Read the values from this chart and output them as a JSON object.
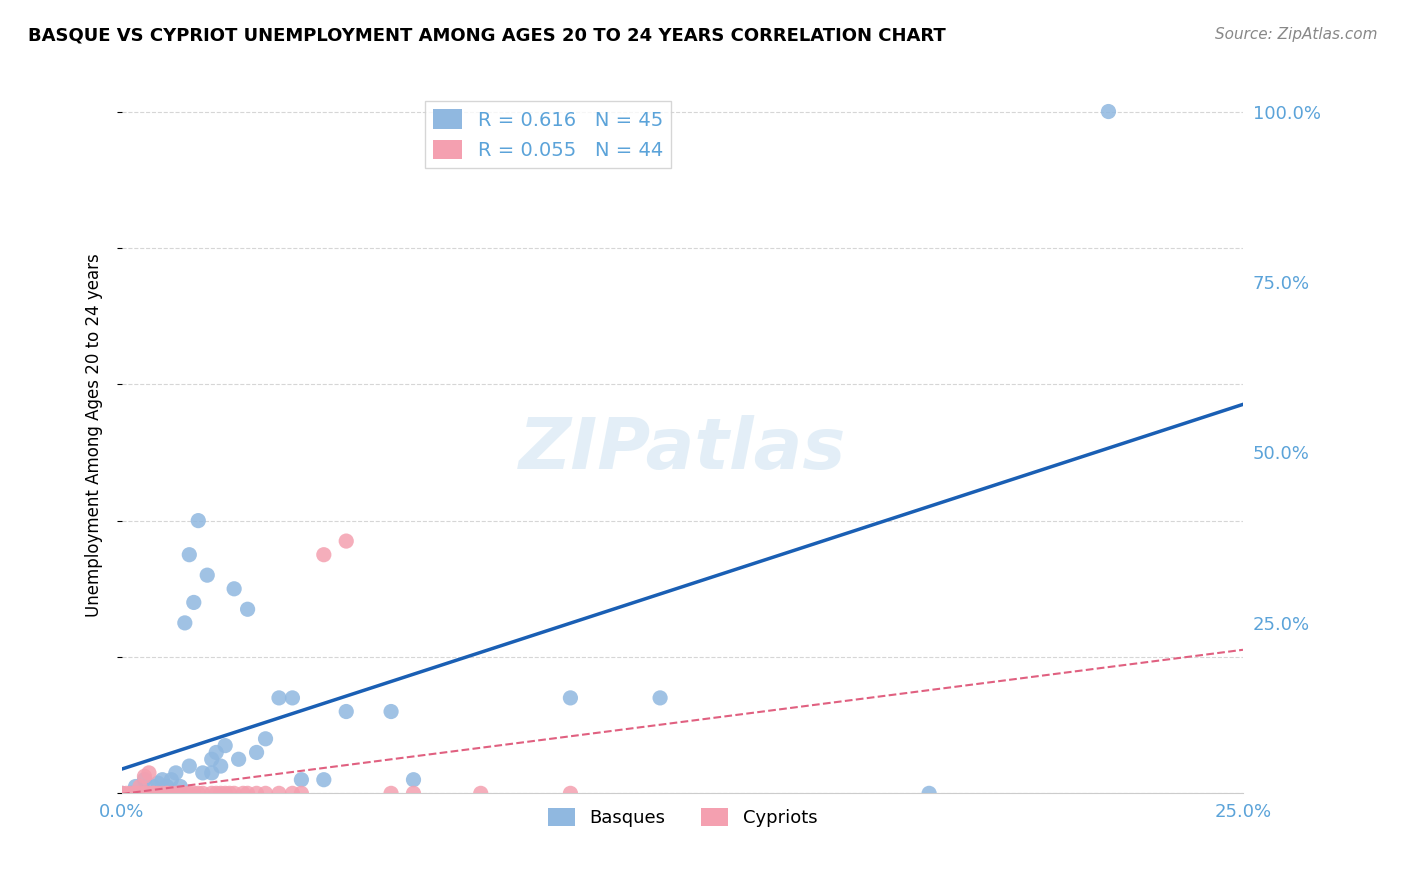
{
  "title": "BASQUE VS CYPRIOT UNEMPLOYMENT AMONG AGES 20 TO 24 YEARS CORRELATION CHART",
  "source": "Source: ZipAtlas.com",
  "xlabel": "",
  "ylabel": "Unemployment Among Ages 20 to 24 years",
  "xlim": [
    0.0,
    0.25
  ],
  "ylim": [
    0.0,
    1.05
  ],
  "xticks": [
    0.0,
    0.05,
    0.1,
    0.15,
    0.2,
    0.25
  ],
  "xticklabels": [
    "0.0%",
    "",
    "",
    "",
    "",
    "25.0%"
  ],
  "yticks": [
    0.0,
    0.25,
    0.5,
    0.75,
    1.0
  ],
  "yticklabels": [
    "",
    "25.0%",
    "50.0%",
    "75.0%",
    "100.0%"
  ],
  "basque_color": "#90b8e0",
  "cypriot_color": "#f4a0b0",
  "basque_line_color": "#1a5fb4",
  "cypriot_line_color": "#e06080",
  "grid_color": "#cccccc",
  "watermark": "ZIPatlas",
  "legend_basque_R": "0.616",
  "legend_basque_N": "45",
  "legend_cypriot_R": "0.055",
  "legend_cypriot_N": "44",
  "basque_x": [
    0.0,
    0.002,
    0.003,
    0.004,
    0.005,
    0.005,
    0.006,
    0.007,
    0.008,
    0.008,
    0.009,
    0.01,
    0.01,
    0.011,
    0.012,
    0.012,
    0.013,
    0.014,
    0.015,
    0.015,
    0.016,
    0.017,
    0.018,
    0.019,
    0.02,
    0.02,
    0.021,
    0.022,
    0.023,
    0.025,
    0.026,
    0.028,
    0.03,
    0.032,
    0.035,
    0.038,
    0.04,
    0.045,
    0.05,
    0.06,
    0.065,
    0.1,
    0.12,
    0.18,
    0.22
  ],
  "basque_y": [
    0.0,
    0.0,
    0.01,
    0.0,
    0.0,
    0.02,
    0.0,
    0.01,
    0.0,
    0.015,
    0.02,
    0.0,
    0.01,
    0.02,
    0.0,
    0.03,
    0.01,
    0.25,
    0.35,
    0.04,
    0.28,
    0.4,
    0.03,
    0.32,
    0.03,
    0.05,
    0.06,
    0.04,
    0.07,
    0.3,
    0.05,
    0.27,
    0.06,
    0.08,
    0.14,
    0.14,
    0.02,
    0.02,
    0.12,
    0.12,
    0.02,
    0.14,
    0.14,
    0.0,
    1.0
  ],
  "cypriot_x": [
    0.0,
    0.001,
    0.002,
    0.003,
    0.003,
    0.004,
    0.004,
    0.005,
    0.005,
    0.006,
    0.006,
    0.007,
    0.007,
    0.008,
    0.009,
    0.01,
    0.01,
    0.011,
    0.012,
    0.013,
    0.014,
    0.015,
    0.016,
    0.017,
    0.018,
    0.02,
    0.021,
    0.022,
    0.023,
    0.024,
    0.025,
    0.027,
    0.028,
    0.03,
    0.032,
    0.035,
    0.038,
    0.04,
    0.045,
    0.05,
    0.06,
    0.065,
    0.08,
    0.1
  ],
  "cypriot_y": [
    0.0,
    0.0,
    0.0,
    0.0,
    0.0,
    0.0,
    0.01,
    0.0,
    0.025,
    0.0,
    0.03,
    0.0,
    0.0,
    0.0,
    0.0,
    0.0,
    0.0,
    0.0,
    0.0,
    0.0,
    0.0,
    0.0,
    0.0,
    0.0,
    0.0,
    0.0,
    0.0,
    0.0,
    0.0,
    0.0,
    0.0,
    0.0,
    0.0,
    0.0,
    0.0,
    0.0,
    0.0,
    0.0,
    0.35,
    0.37,
    0.0,
    0.0,
    0.0,
    0.0
  ]
}
